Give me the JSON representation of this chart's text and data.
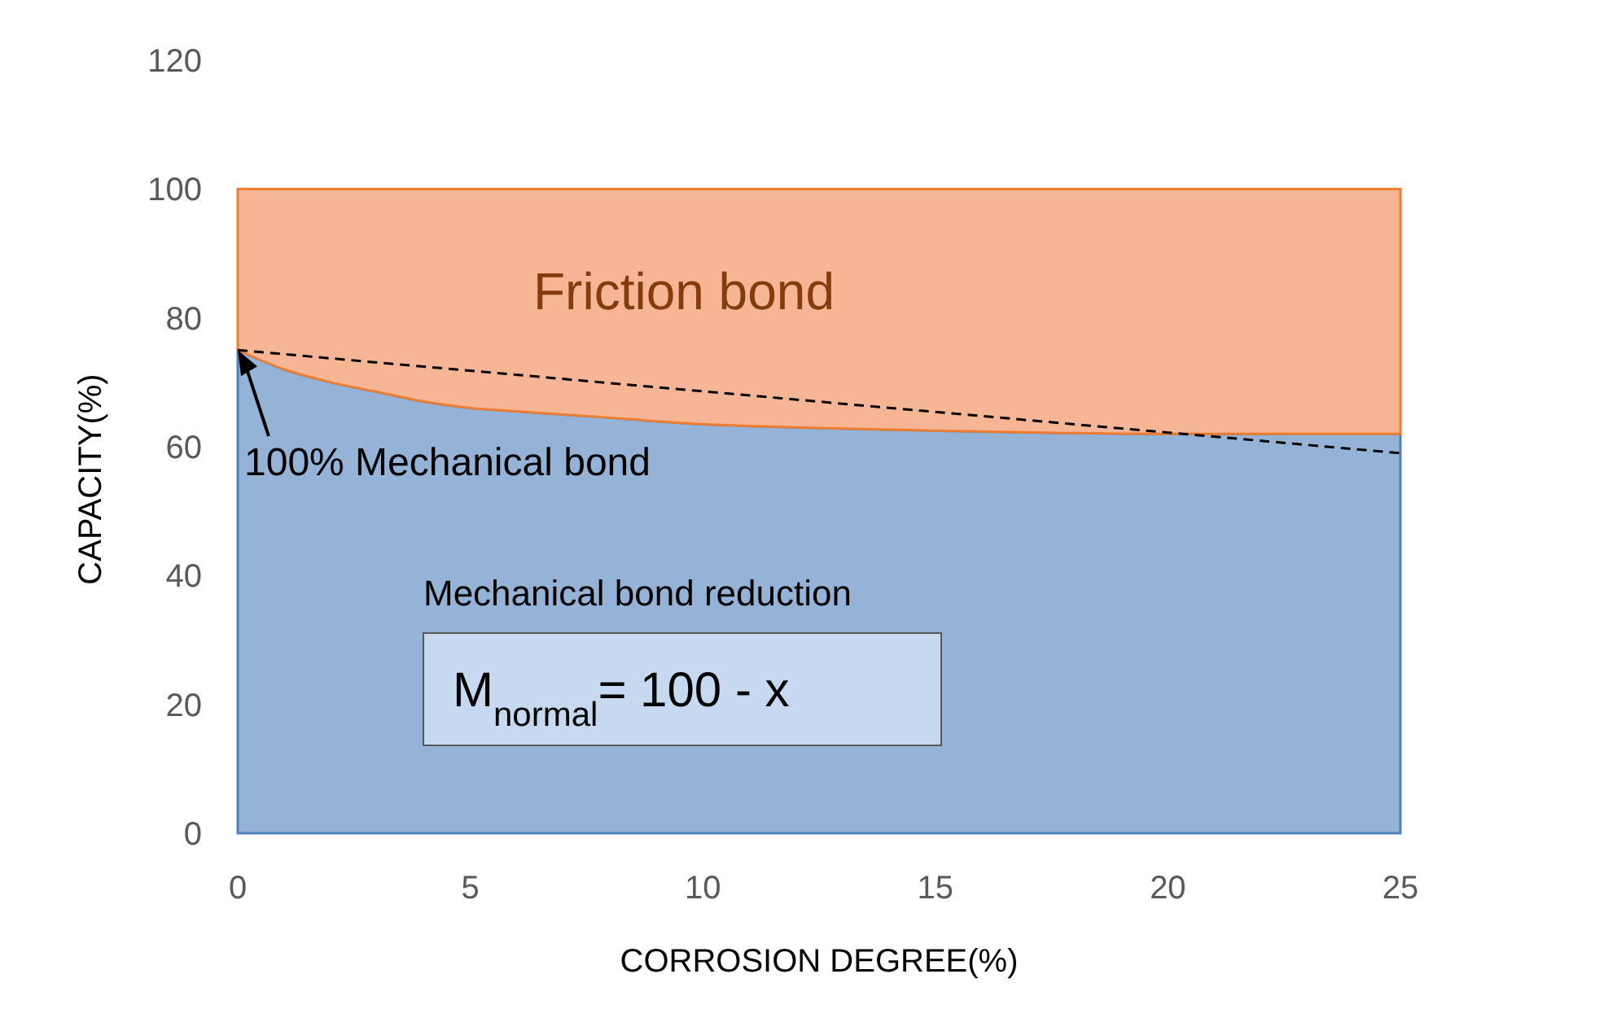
{
  "chart_data": {
    "type": "area",
    "stacked": true,
    "xlabel": "CORROSION DEGREE(%)",
    "ylabel": "CAPACITY(%)",
    "x": [
      0,
      1,
      2,
      3,
      4,
      5,
      6,
      8,
      10,
      12,
      15,
      20,
      25
    ],
    "series": [
      {
        "color": "#95b3d7",
        "values": [
          75,
          72,
          70,
          68.5,
          67,
          66,
          65.5,
          64.5,
          63.5,
          63,
          62.5,
          62,
          62
        ]
      },
      {
        "color": "#f6b595",
        "values": [
          25,
          28,
          30,
          31.5,
          33,
          34,
          34.5,
          35.5,
          36.5,
          37,
          37.5,
          38,
          38
        ]
      },
      {
        "type": "line",
        "color": "#000000",
        "line_style": "dashed",
        "x": [
          0,
          25
        ],
        "values": [
          75,
          59
        ]
      }
    ],
    "xlim": [
      0,
      25
    ],
    "xticks": [
      0,
      5,
      10,
      15,
      20,
      25
    ],
    "ylim": [
      0,
      120
    ],
    "yticks": [
      0,
      20,
      40,
      60,
      80,
      100,
      120
    ],
    "grid": false,
    "annotations": [
      "Friction bond",
      {
        "text": "100% Mechanical bond",
        "x": 0,
        "y": 75
      },
      "Mechanical bond reduction",
      "M$_{normal}$= 100 - x"
    ]
  }
}
